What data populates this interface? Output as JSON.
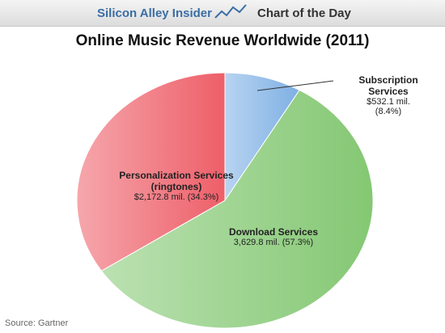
{
  "header": {
    "brand": "Silicon Alley Insider",
    "section": "Chart of the Day"
  },
  "chart_data": {
    "type": "pie",
    "title": "Online Music Revenue Worldwide (2011)",
    "categories": [
      "Subscription Services",
      "Download Services",
      "Personalization Services (ringtones)"
    ],
    "values": [
      532.1,
      3629.8,
      2172.8
    ],
    "value_labels": [
      "$532.1 mil. (8.4%)",
      "3,629.8 mil. (57.3%)",
      "$2,172.8 mil. (34.3%)"
    ],
    "colors": [
      "#7eb0e4",
      "#84c873",
      "#ee5f69"
    ],
    "source": "Source: Gartner"
  }
}
